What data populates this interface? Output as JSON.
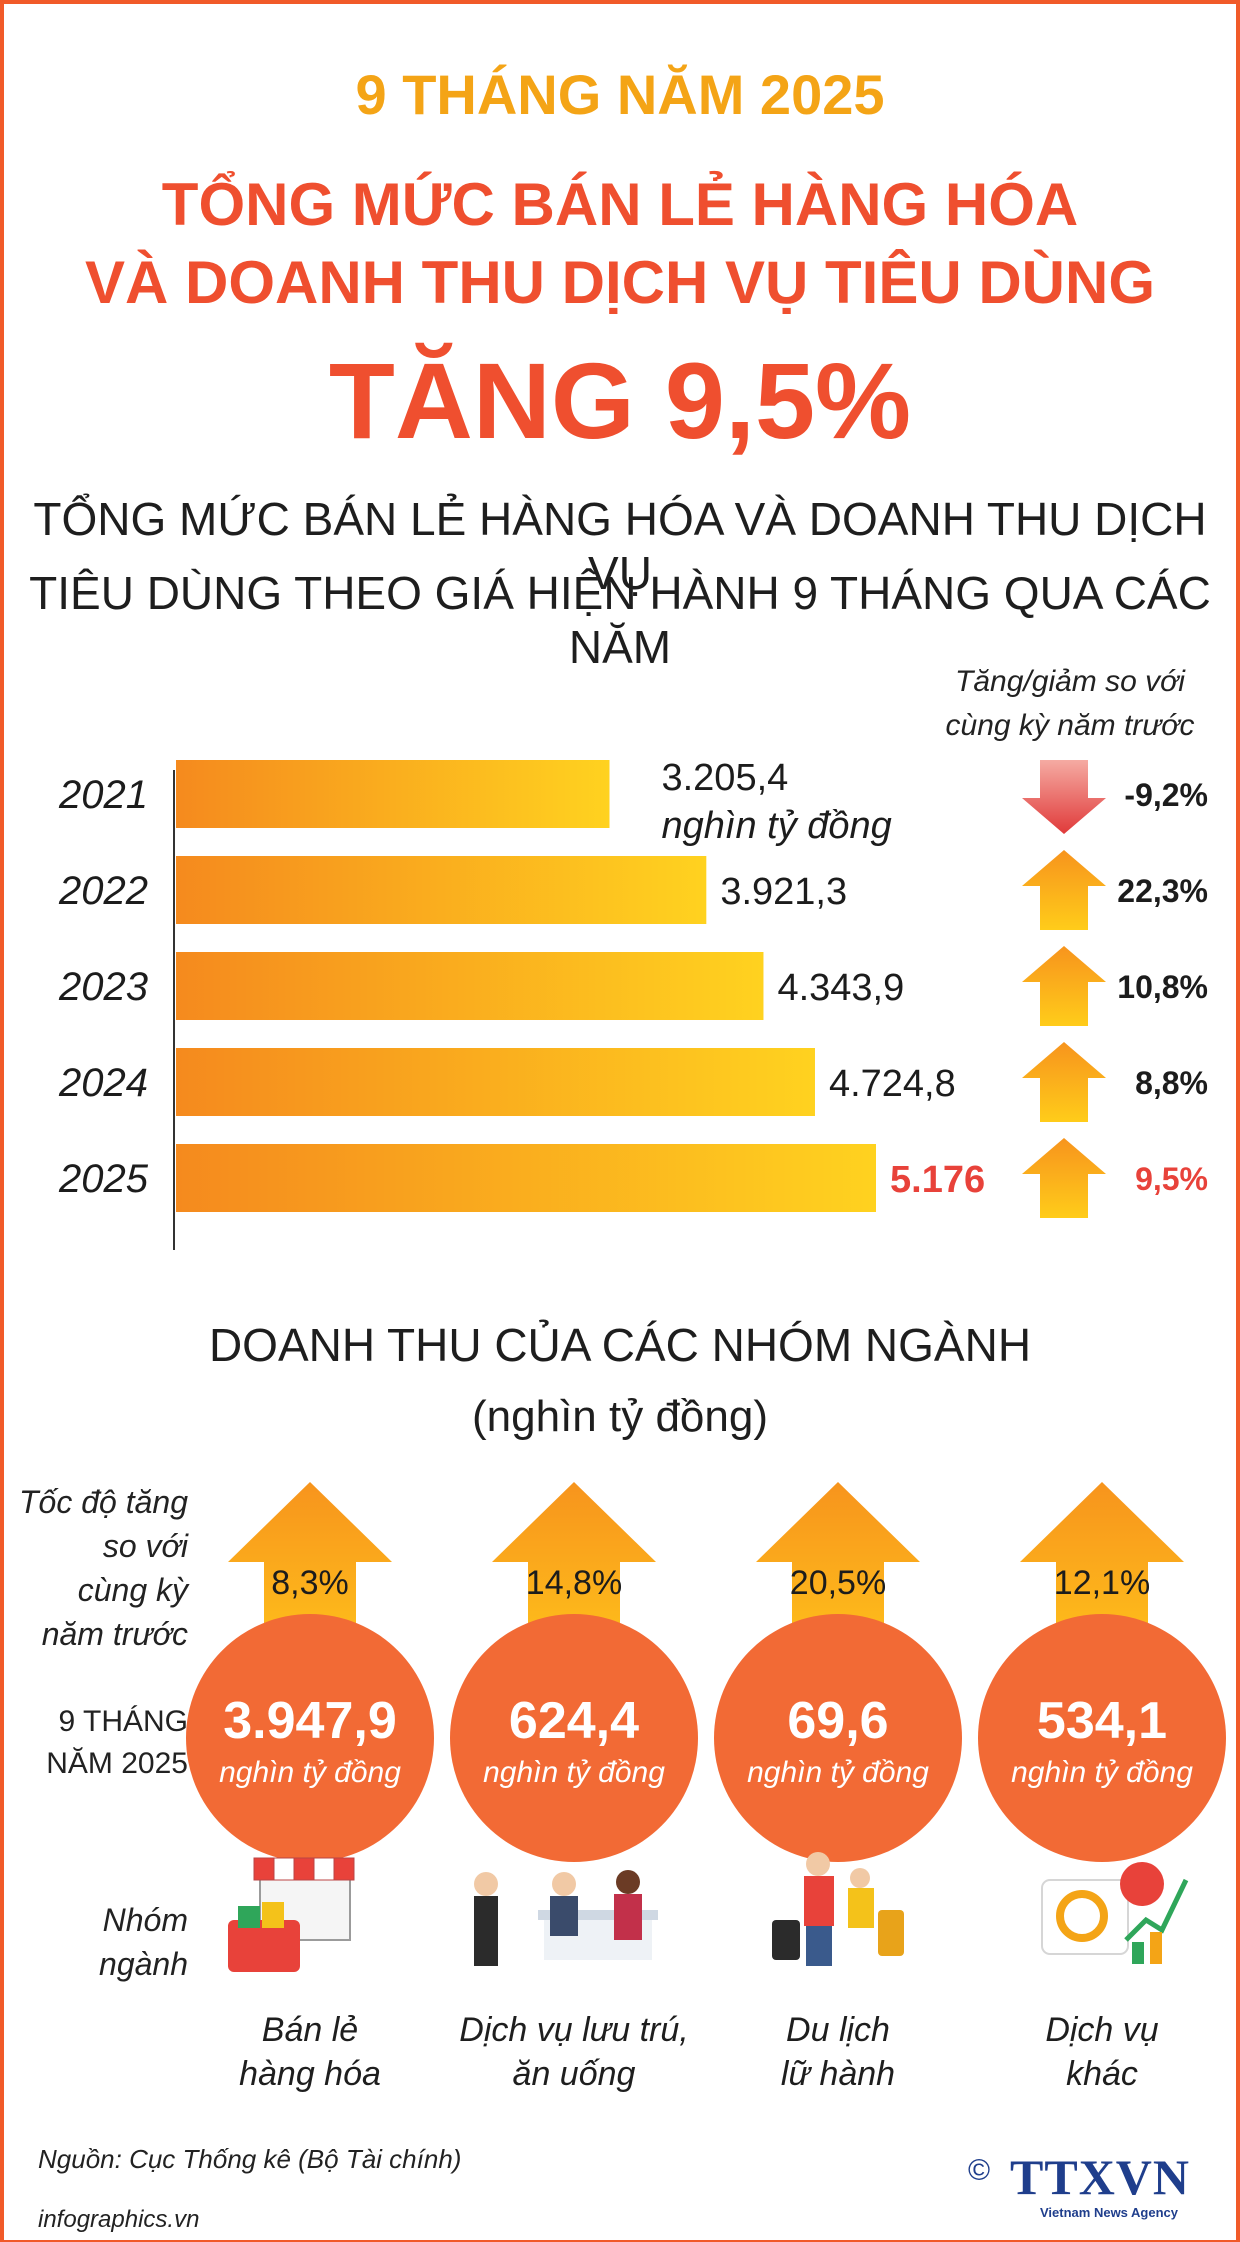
{
  "header": {
    "period": "9 THÁNG NĂM 2025",
    "title_line1": "TỔNG MỨC BÁN LẺ HÀNG HÓA",
    "title_line2": "VÀ DOANH THU DỊCH VỤ TIÊU DÙNG",
    "headline": "TĂNG 9,5%",
    "subtitle_line1": "TỔNG MỨC BÁN LẺ HÀNG HÓA VÀ DOANH THU DỊCH VỤ",
    "subtitle_line2": "TIÊU DÙNG THEO GIÁ HIỆN HÀNH 9 THÁNG QUA CÁC NĂM"
  },
  "change_header": {
    "line1": "Tăng/giảm so với",
    "line2": "cùng kỳ năm trước"
  },
  "colors": {
    "accent": "#ef4f2f",
    "gold": "#f4a416",
    "bar_start": "#f58a1e",
    "bar_end": "#ffd21f",
    "down_arrow": "#e44848",
    "circle": "#f26a35",
    "logo": "#1f3e8c"
  },
  "chart_data": [
    {
      "type": "bar",
      "orientation": "horizontal",
      "categories": [
        "2021",
        "2022",
        "2023",
        "2024",
        "2025"
      ],
      "values": [
        3205.4,
        3921.3,
        4343.9,
        4724.8,
        5176
      ],
      "value_labels": [
        "3.205,4",
        "3.921,3",
        "4.343,9",
        "4.724,8",
        "5.176"
      ],
      "unit_label": "nghìn tỷ đồng",
      "changes": [
        -9.2,
        22.3,
        10.8,
        8.8,
        9.5
      ],
      "change_labels": [
        "-9,2%",
        "22,3%",
        "10,8%",
        "8,8%",
        "9,5%"
      ],
      "highlight_index": 4
    },
    {
      "type": "bar",
      "title": "DOANH THU CỦA CÁC NHÓM NGÀNH",
      "subtitle": "(nghìn tỷ đồng)",
      "categories": [
        "Bán lẻ hàng hóa",
        "Dịch vụ lưu trú, ăn uống",
        "Du lịch lữ hành",
        "Dịch vụ khác"
      ],
      "category_lines": [
        [
          "Bán lẻ",
          "hàng hóa"
        ],
        [
          "Dịch vụ lưu trú,",
          "ăn uống"
        ],
        [
          "Du lịch",
          "lữ hành"
        ],
        [
          "Dịch vụ",
          "khác"
        ]
      ],
      "values": [
        3947.9,
        624.4,
        69.6,
        534.1
      ],
      "value_labels": [
        "3.947,9",
        "624,4",
        "69,6",
        "534,1"
      ],
      "unit_label": "nghìn tỷ đồng",
      "growth": [
        8.3,
        14.8,
        20.5,
        12.1
      ],
      "growth_labels": [
        "8,3%",
        "14,8%",
        "20,5%",
        "12,1%"
      ],
      "icons": [
        "shop-basket-icon",
        "restaurant-icon",
        "travelers-icon",
        "analytics-icon"
      ]
    }
  ],
  "sector_labels": {
    "growth_lines": [
      "Tốc độ tăng",
      "so với",
      "cùng kỳ",
      "năm trước"
    ],
    "period_lines": [
      "9 THÁNG",
      "NĂM 2025"
    ],
    "group_lines": [
      "Nhóm",
      "ngành"
    ]
  },
  "footer": {
    "source": "Nguồn: Cục Thống kê (Bộ Tài chính)",
    "url": "infographics.vn",
    "copyright_symbol": "©",
    "logo": "TTXVN",
    "logo_sub": "Vietnam News Agency"
  }
}
